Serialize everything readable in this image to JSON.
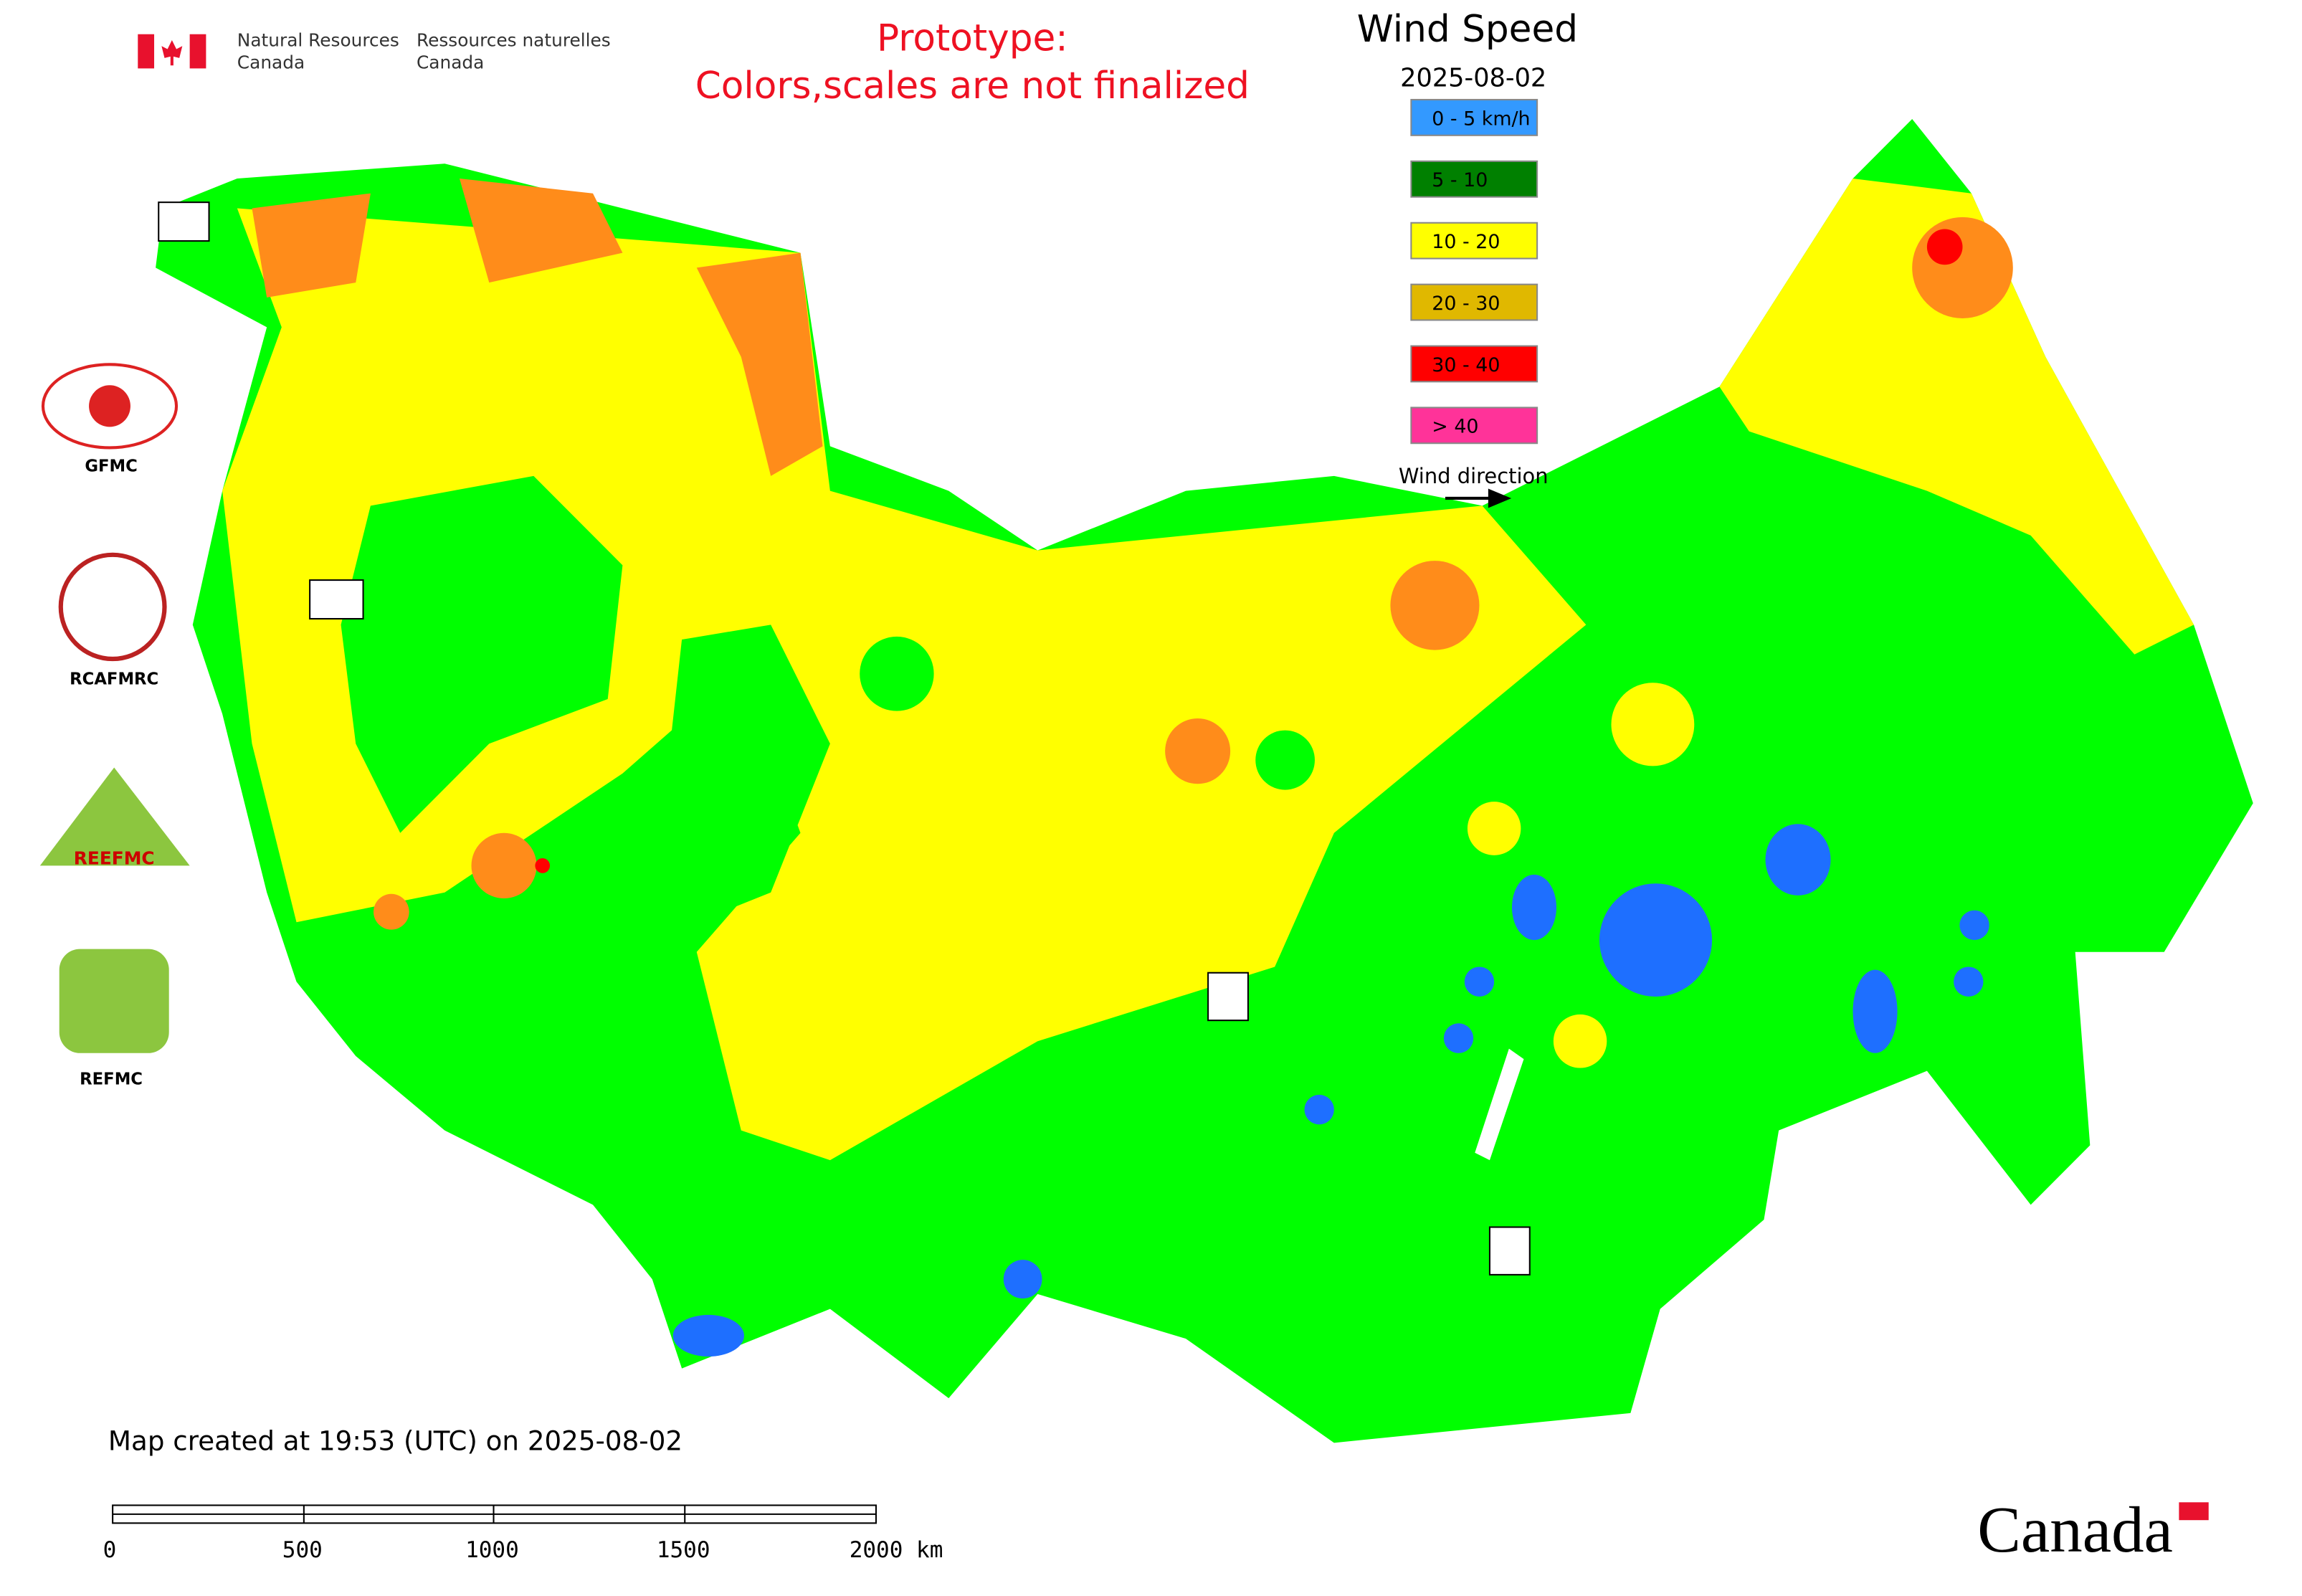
{
  "header": {
    "agency_en": [
      "Natural Resources",
      "Canada"
    ],
    "agency_fr": [
      "Ressources naturelles",
      "Canada"
    ]
  },
  "prototype_note": [
    "Prototype:",
    "Colors,scales are not finalized"
  ],
  "legend": {
    "title": "Wind Speed",
    "date": "2025-08-02",
    "classes": [
      {
        "label": "0 - 5 km/h",
        "color": "#3399ff"
      },
      {
        "label": "5 - 10",
        "color": "#008000"
      },
      {
        "label": "10 - 20",
        "color": "#ffff00"
      },
      {
        "label": "20 - 30",
        "color": "#e0b800"
      },
      {
        "label": "30 - 40",
        "color": "#ff0000"
      },
      {
        "label": "> 40",
        "color": "#ff3399"
      }
    ],
    "direction_label": "Wind direction"
  },
  "logos": [
    "GFMC",
    "RCAFMRC",
    "REEFMC",
    "REFMC"
  ],
  "footer": {
    "created": "Map created at 19:53 (UTC) on 2025-08-02",
    "scale_labels": [
      "0",
      "500",
      "1000",
      "1500",
      "2000 km"
    ],
    "wordmark": "Canada"
  }
}
